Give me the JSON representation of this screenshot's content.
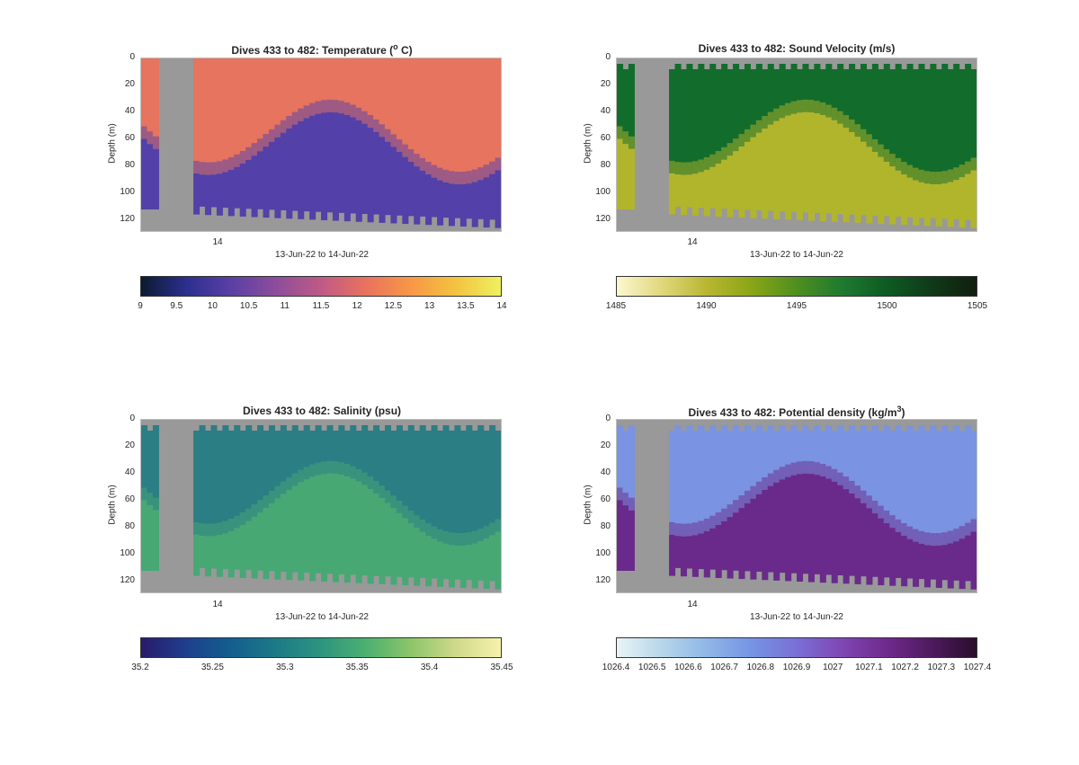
{
  "panels": [
    {
      "id": "temperature",
      "title": "Dives 433 to 482: Temperature (",
      "title_sup": "o",
      "title_end": " C)",
      "ylabel": "Depth (m)",
      "yticks": [
        "0",
        "20",
        "40",
        "60",
        "80",
        "100",
        "120"
      ],
      "xtick": "14",
      "xlabel": "13-Jun-22 to 14-Jun-22",
      "colorbar_ticks": [
        "9",
        "9.5",
        "10",
        "10.5",
        "11",
        "11.5",
        "12",
        "12.5",
        "13",
        "13.5",
        "14"
      ],
      "colormap": [
        "#0b1b2e",
        "#2b2f8f",
        "#5a3fa6",
        "#8d4d9b",
        "#bf5a85",
        "#e9725e",
        "#f89746",
        "#f3c33f",
        "#eff060"
      ],
      "surface_color": "#e6745f",
      "deep_color": "#5340a8"
    },
    {
      "id": "sound-velocity",
      "title": "Dives 433 to 482: Sound Velocity (m/s)",
      "ylabel": "Depth (m)",
      "yticks": [
        "0",
        "20",
        "40",
        "60",
        "80",
        "100",
        "120"
      ],
      "xtick": "14",
      "xlabel": "13-Jun-22 to 14-Jun-22",
      "colorbar_ticks": [
        "1485",
        "1490",
        "1495",
        "1500",
        "1505"
      ],
      "colormap": [
        "#fcf8d0",
        "#e1d77c",
        "#b9b632",
        "#8aa516",
        "#4f8f1f",
        "#1f7a2f",
        "#0e5b24",
        "#0f3a18",
        "#111e10"
      ],
      "surface_color": "#126d2c",
      "deep_color": "#b1b52b"
    },
    {
      "id": "salinity",
      "title": "Dives 433 to 482: Salinity (psu)",
      "ylabel": "Depth (m)",
      "yticks": [
        "0",
        "20",
        "40",
        "60",
        "80",
        "100",
        "120"
      ],
      "xtick": "14",
      "xlabel": "13-Jun-22 to 14-Jun-22",
      "colorbar_ticks": [
        "35.2",
        "35.25",
        "35.3",
        "35.35",
        "35.4",
        "35.45"
      ],
      "colormap": [
        "#2a1a6a",
        "#1f3f8e",
        "#135e8e",
        "#1d7a87",
        "#2d9480",
        "#4cb070",
        "#8cc56a",
        "#cfd98a",
        "#f7f1ac"
      ],
      "surface_color": "#2b7e84",
      "deep_color": "#47a874"
    },
    {
      "id": "potential-density",
      "title": "Dives 433 to 482: Potential density (kg/m",
      "title_sup": "3",
      "title_end": ")",
      "ylabel": "Depth (m)",
      "yticks": [
        "0",
        "20",
        "40",
        "60",
        "80",
        "100",
        "120"
      ],
      "xtick": "14",
      "xlabel": "13-Jun-22 to 14-Jun-22",
      "colorbar_ticks": [
        "1026.4",
        "1026.5",
        "1026.6",
        "1026.7",
        "1026.8",
        "1026.9",
        "1027",
        "1027.1",
        "1027.2",
        "1027.3",
        "1027.4"
      ],
      "colormap": [
        "#e9f4f5",
        "#b7d6ea",
        "#8fb7e7",
        "#7594e4",
        "#7a6fd6",
        "#7f47b3",
        "#6f2a8d",
        "#4e1a5e",
        "#2a0d2b"
      ],
      "surface_color": "#7a93e2",
      "deep_color": "#6a2a8b"
    }
  ],
  "chart_data": [
    {
      "type": "heatmap",
      "title": "Dives 433 to 482: Temperature (o C)",
      "xlabel": "13-Jun-22 to 14-Jun-22",
      "ylabel": "Depth (m)",
      "ylim": [
        128,
        0
      ],
      "colorbar_range": [
        9,
        14
      ],
      "x_tick": "14",
      "description_values": {
        "surface_temperature": 12.5,
        "deep_temperature": 10.2,
        "max_profile_depth": 125
      }
    },
    {
      "type": "heatmap",
      "title": "Dives 433 to 482: Sound Velocity (m/s)",
      "xlabel": "13-Jun-22 to 14-Jun-22",
      "ylabel": "Depth (m)",
      "ylim": [
        128,
        0
      ],
      "colorbar_range": [
        1485,
        1505
      ],
      "x_tick": "14",
      "description_values": {
        "surface_sound_velocity": 1500,
        "deep_sound_velocity": 1494
      }
    },
    {
      "type": "heatmap",
      "title": "Dives 433 to 482: Salinity (psu)",
      "xlabel": "13-Jun-22 to 14-Jun-22",
      "ylabel": "Depth (m)",
      "ylim": [
        128,
        0
      ],
      "colorbar_range": [
        35.2,
        35.45
      ],
      "x_tick": "14",
      "description_values": {
        "surface_salinity": 35.31,
        "deep_salinity": 35.36
      }
    },
    {
      "type": "heatmap",
      "title": "Dives 433 to 482: Potential density (kg/m3)",
      "xlabel": "13-Jun-22 to 14-Jun-22",
      "ylabel": "Depth (m)",
      "ylim": [
        128,
        0
      ],
      "colorbar_range": [
        1026.4,
        1027.4
      ],
      "x_tick": "14",
      "description_values": {
        "surface_density": 1026.75,
        "deep_density": 1027.15
      }
    }
  ]
}
